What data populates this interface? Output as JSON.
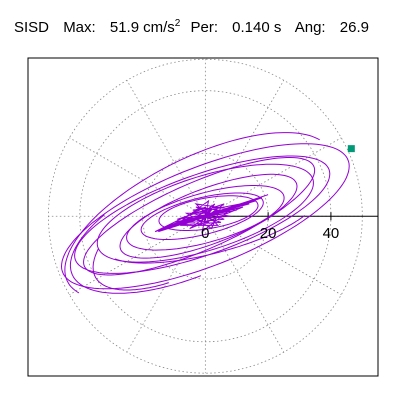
{
  "header": {
    "station": "SISD",
    "max_label": "Max:",
    "max_value": "51.9",
    "max_unit": "cm/s",
    "max_unit_exp": "2",
    "per_label": "Per:",
    "per_value": "0.140 s",
    "ang_label": "Ang:",
    "ang_value": "26.9"
  },
  "colors": {
    "trace": "#9400d3",
    "marker": "#009a78",
    "grid": "#888888",
    "axis": "#000000",
    "frame": "#000000"
  },
  "chart_data": {
    "type": "line",
    "title": "",
    "xlabel": "",
    "ylabel": "",
    "polar_rings": [
      20,
      40
    ],
    "polar_ring_max": 50,
    "x_axis_ticks": [
      {
        "value": 0,
        "label": "0"
      },
      {
        "value": 20,
        "label": "20"
      },
      {
        "value": 40,
        "label": "40"
      }
    ],
    "xlim": [
      -56.5,
      55
    ],
    "ylim": [
      -52,
      51.5
    ],
    "max_value": 51.9,
    "max_angle_deg": 26.9,
    "endpoint": [
      46.5,
      22
    ],
    "loops": [
      {
        "a": 49,
        "b": 16,
        "rot_deg": 22,
        "cx": 0,
        "cy": 0,
        "start": 0.45
      },
      {
        "a": 43,
        "b": 13,
        "rot_deg": 20,
        "cx": -1,
        "cy": 0.5,
        "start": 1.2
      },
      {
        "a": 40,
        "b": 11,
        "rot_deg": 24,
        "cx": -2,
        "cy": 0,
        "start": 2.0
      },
      {
        "a": 36,
        "b": 12,
        "rot_deg": 18,
        "cx": 0,
        "cy": 1,
        "start": 2.7
      },
      {
        "a": 30,
        "b": 9,
        "rot_deg": 21,
        "cx": 1,
        "cy": 0,
        "start": 3.3
      },
      {
        "a": 26,
        "b": 8,
        "rot_deg": 16,
        "cx": 0,
        "cy": -0.5,
        "start": 4.1
      },
      {
        "a": 20,
        "b": 6,
        "rot_deg": 14,
        "cx": -1,
        "cy": 0,
        "start": 4.8
      },
      {
        "a": 16,
        "b": 5,
        "rot_deg": 10,
        "cx": 1,
        "cy": 1,
        "start": 5.5
      }
    ],
    "arcs": [
      {
        "a": 47,
        "b": 19,
        "rot_deg": 27,
        "cx": -2,
        "cy": 0,
        "t0": 0.25,
        "t1": 3.4
      },
      {
        "a": 42,
        "b": 17,
        "rot_deg": 24,
        "cx": -4,
        "cy": -2,
        "t0": 2.2,
        "t1": 4.6
      },
      {
        "a": 38,
        "b": 15,
        "rot_deg": 30,
        "cx": -2,
        "cy": -1,
        "t0": 2.6,
        "t1": 4.2
      },
      {
        "a": 35,
        "b": 10,
        "rot_deg": 15,
        "cx": 2,
        "cy": -2,
        "t0": 3.5,
        "t1": 5.7
      }
    ],
    "core_points": [
      [
        0,
        0
      ],
      [
        4,
        2
      ],
      [
        -3,
        3
      ],
      [
        6,
        -1
      ],
      [
        -5,
        -2
      ],
      [
        3,
        4
      ],
      [
        -2,
        -3
      ],
      [
        7,
        1
      ],
      [
        -6,
        1
      ],
      [
        2,
        -4
      ],
      [
        5,
        3
      ],
      [
        -4,
        2
      ],
      [
        8,
        0
      ],
      [
        -7,
        -1
      ],
      [
        1,
        5
      ],
      [
        -1,
        -5
      ],
      [
        9,
        3
      ],
      [
        -8,
        -3
      ],
      [
        4,
        -3
      ],
      [
        -3,
        4
      ],
      [
        10,
        2
      ],
      [
        -9,
        -1
      ],
      [
        6,
        4
      ],
      [
        -5,
        -4
      ],
      [
        12,
        3
      ],
      [
        -10,
        -2
      ],
      [
        3,
        1
      ],
      [
        -2,
        0
      ],
      [
        14,
        4
      ],
      [
        -12,
        -3
      ],
      [
        5,
        -2
      ],
      [
        -4,
        1
      ],
      [
        16,
        5
      ],
      [
        -14,
        -4
      ],
      [
        2,
        2
      ],
      [
        -1,
        -1
      ],
      [
        18,
        6
      ],
      [
        -15,
        -5
      ],
      [
        7,
        2
      ],
      [
        -6,
        -2
      ],
      [
        20,
        7
      ],
      [
        -16,
        -5
      ],
      [
        0,
        3
      ],
      [
        1,
        -2
      ],
      [
        -3,
        -1
      ],
      [
        4,
        1
      ],
      [
        0,
        0
      ]
    ]
  }
}
